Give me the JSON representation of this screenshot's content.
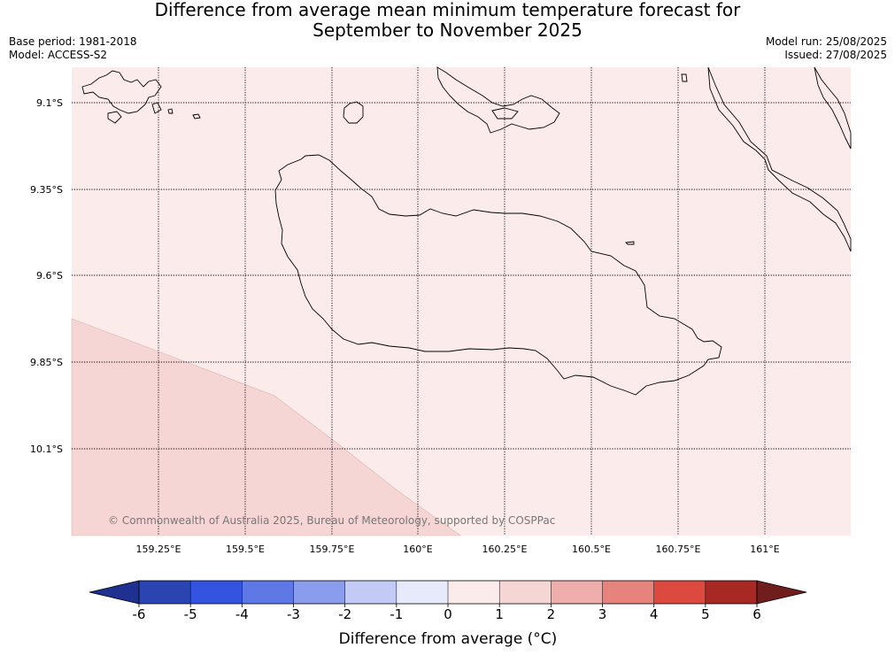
{
  "title": {
    "line1": "Difference from average mean minimum temperature forecast for",
    "line2": "September to November 2025"
  },
  "meta": {
    "base_period": "Base period: 1981-2018",
    "model": "Model: ACCESS-S2",
    "model_run": "Model run: 25/08/2025",
    "issued": "Issued: 27/08/2025"
  },
  "map": {
    "lat_labels": [
      "9.1°S",
      "9.35°S",
      "9.6°S",
      "9.85°S",
      "10.1°S"
    ],
    "lon_labels": [
      "159.25°E",
      "159.5°E",
      "159.75°E",
      "160°E",
      "160.25°E",
      "160.5°E",
      "160.75°E",
      "161°E"
    ],
    "background_color": "#fbeceb",
    "anomaly_region_color": "#f6d6d4",
    "copyright": "© Commonwealth of Australia 2025, Bureau of Meteorology, supported by COSPPac"
  },
  "colorbar": {
    "title": "Difference from average (°C)",
    "tick_labels": [
      "-6",
      "-5",
      "-4",
      "-3",
      "-2",
      "-1",
      "0",
      "1",
      "2",
      "3",
      "4",
      "5",
      "6"
    ],
    "colors": [
      "#1f3190",
      "#2a44b1",
      "#3453e1",
      "#5e78e6",
      "#8a9cec",
      "#c3caf5",
      "#e6eafb",
      "#fbeceb",
      "#f6d6d4",
      "#eeaeab",
      "#e5837c",
      "#dc4a3f",
      "#a82924",
      "#6f1d1d"
    ]
  }
}
